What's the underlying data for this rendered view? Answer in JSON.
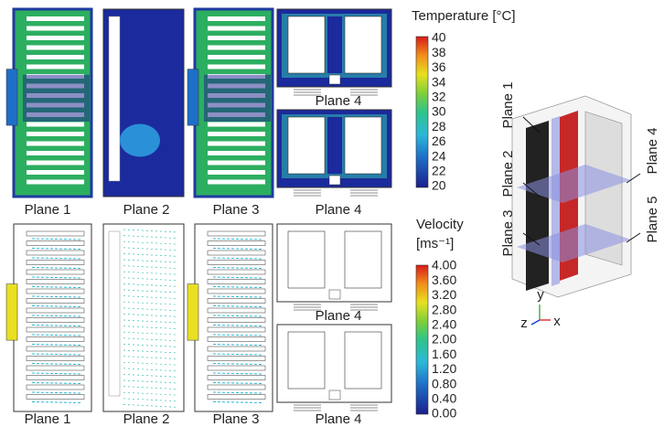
{
  "temperature_panels": {
    "labels": [
      "Plane 1",
      "Plane 2",
      "Plane 3",
      "Plane 4"
    ],
    "inset_label": "Plane 4"
  },
  "velocity_panels": {
    "labels": [
      "Plane 1",
      "Plane 2",
      "Plane 3",
      "Plane 4"
    ],
    "inset_label": "Plane 4"
  },
  "temperature_legend": {
    "title": "Temperature [°C]",
    "ticks": [
      "40",
      "38",
      "36",
      "34",
      "32",
      "30",
      "28",
      "26",
      "24",
      "22",
      "20"
    ]
  },
  "velocity_legend": {
    "title": "Velocity",
    "unit": "[ms⁻¹]",
    "ticks": [
      "4.00",
      "3.60",
      "3.20",
      "2.80",
      "2.40",
      "2.00",
      "1.60",
      "1.20",
      "0.80",
      "0.40",
      "0.00"
    ]
  },
  "geometry": {
    "plane_labels": [
      "Plane 1",
      "Plane 2",
      "Plane 3",
      "Plane 4",
      "Plane 5"
    ],
    "axes": [
      "y",
      "z",
      "x"
    ]
  }
}
